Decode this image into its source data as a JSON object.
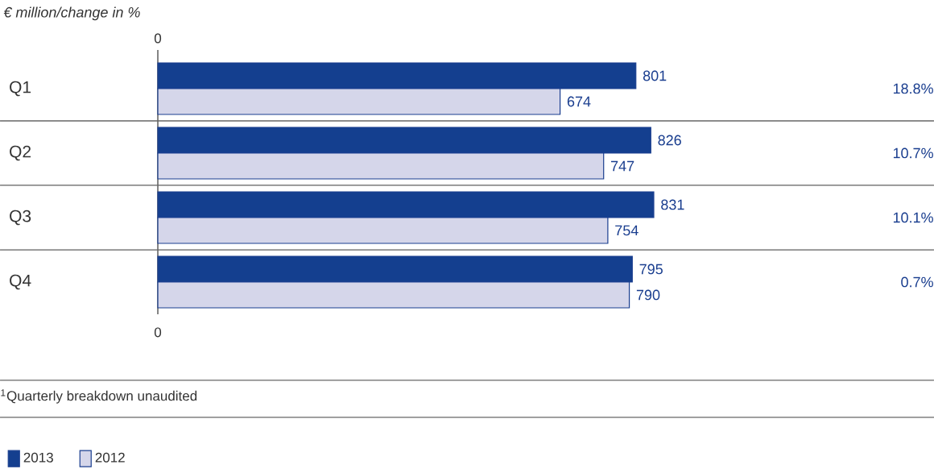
{
  "chart_data": {
    "type": "bar",
    "orientation": "horizontal",
    "title": "€ million/change in %",
    "categories": [
      "Q1",
      "Q2",
      "Q3",
      "Q4"
    ],
    "series": [
      {
        "name": "2013",
        "color": "#143f8f",
        "values": [
          801,
          826,
          831,
          795
        ]
      },
      {
        "name": "2012",
        "color": "#d5d6ea",
        "values": [
          674,
          747,
          754,
          790
        ]
      }
    ],
    "data_labels": true,
    "grid": "y",
    "legend": "bottom left",
    "annotations": [
      "0",
      "18.8%",
      "10.7%",
      "10.1%",
      "0.7%",
      "0",
      "$^{1}$Quarterly breakdown unaudited"
    ]
  }
}
